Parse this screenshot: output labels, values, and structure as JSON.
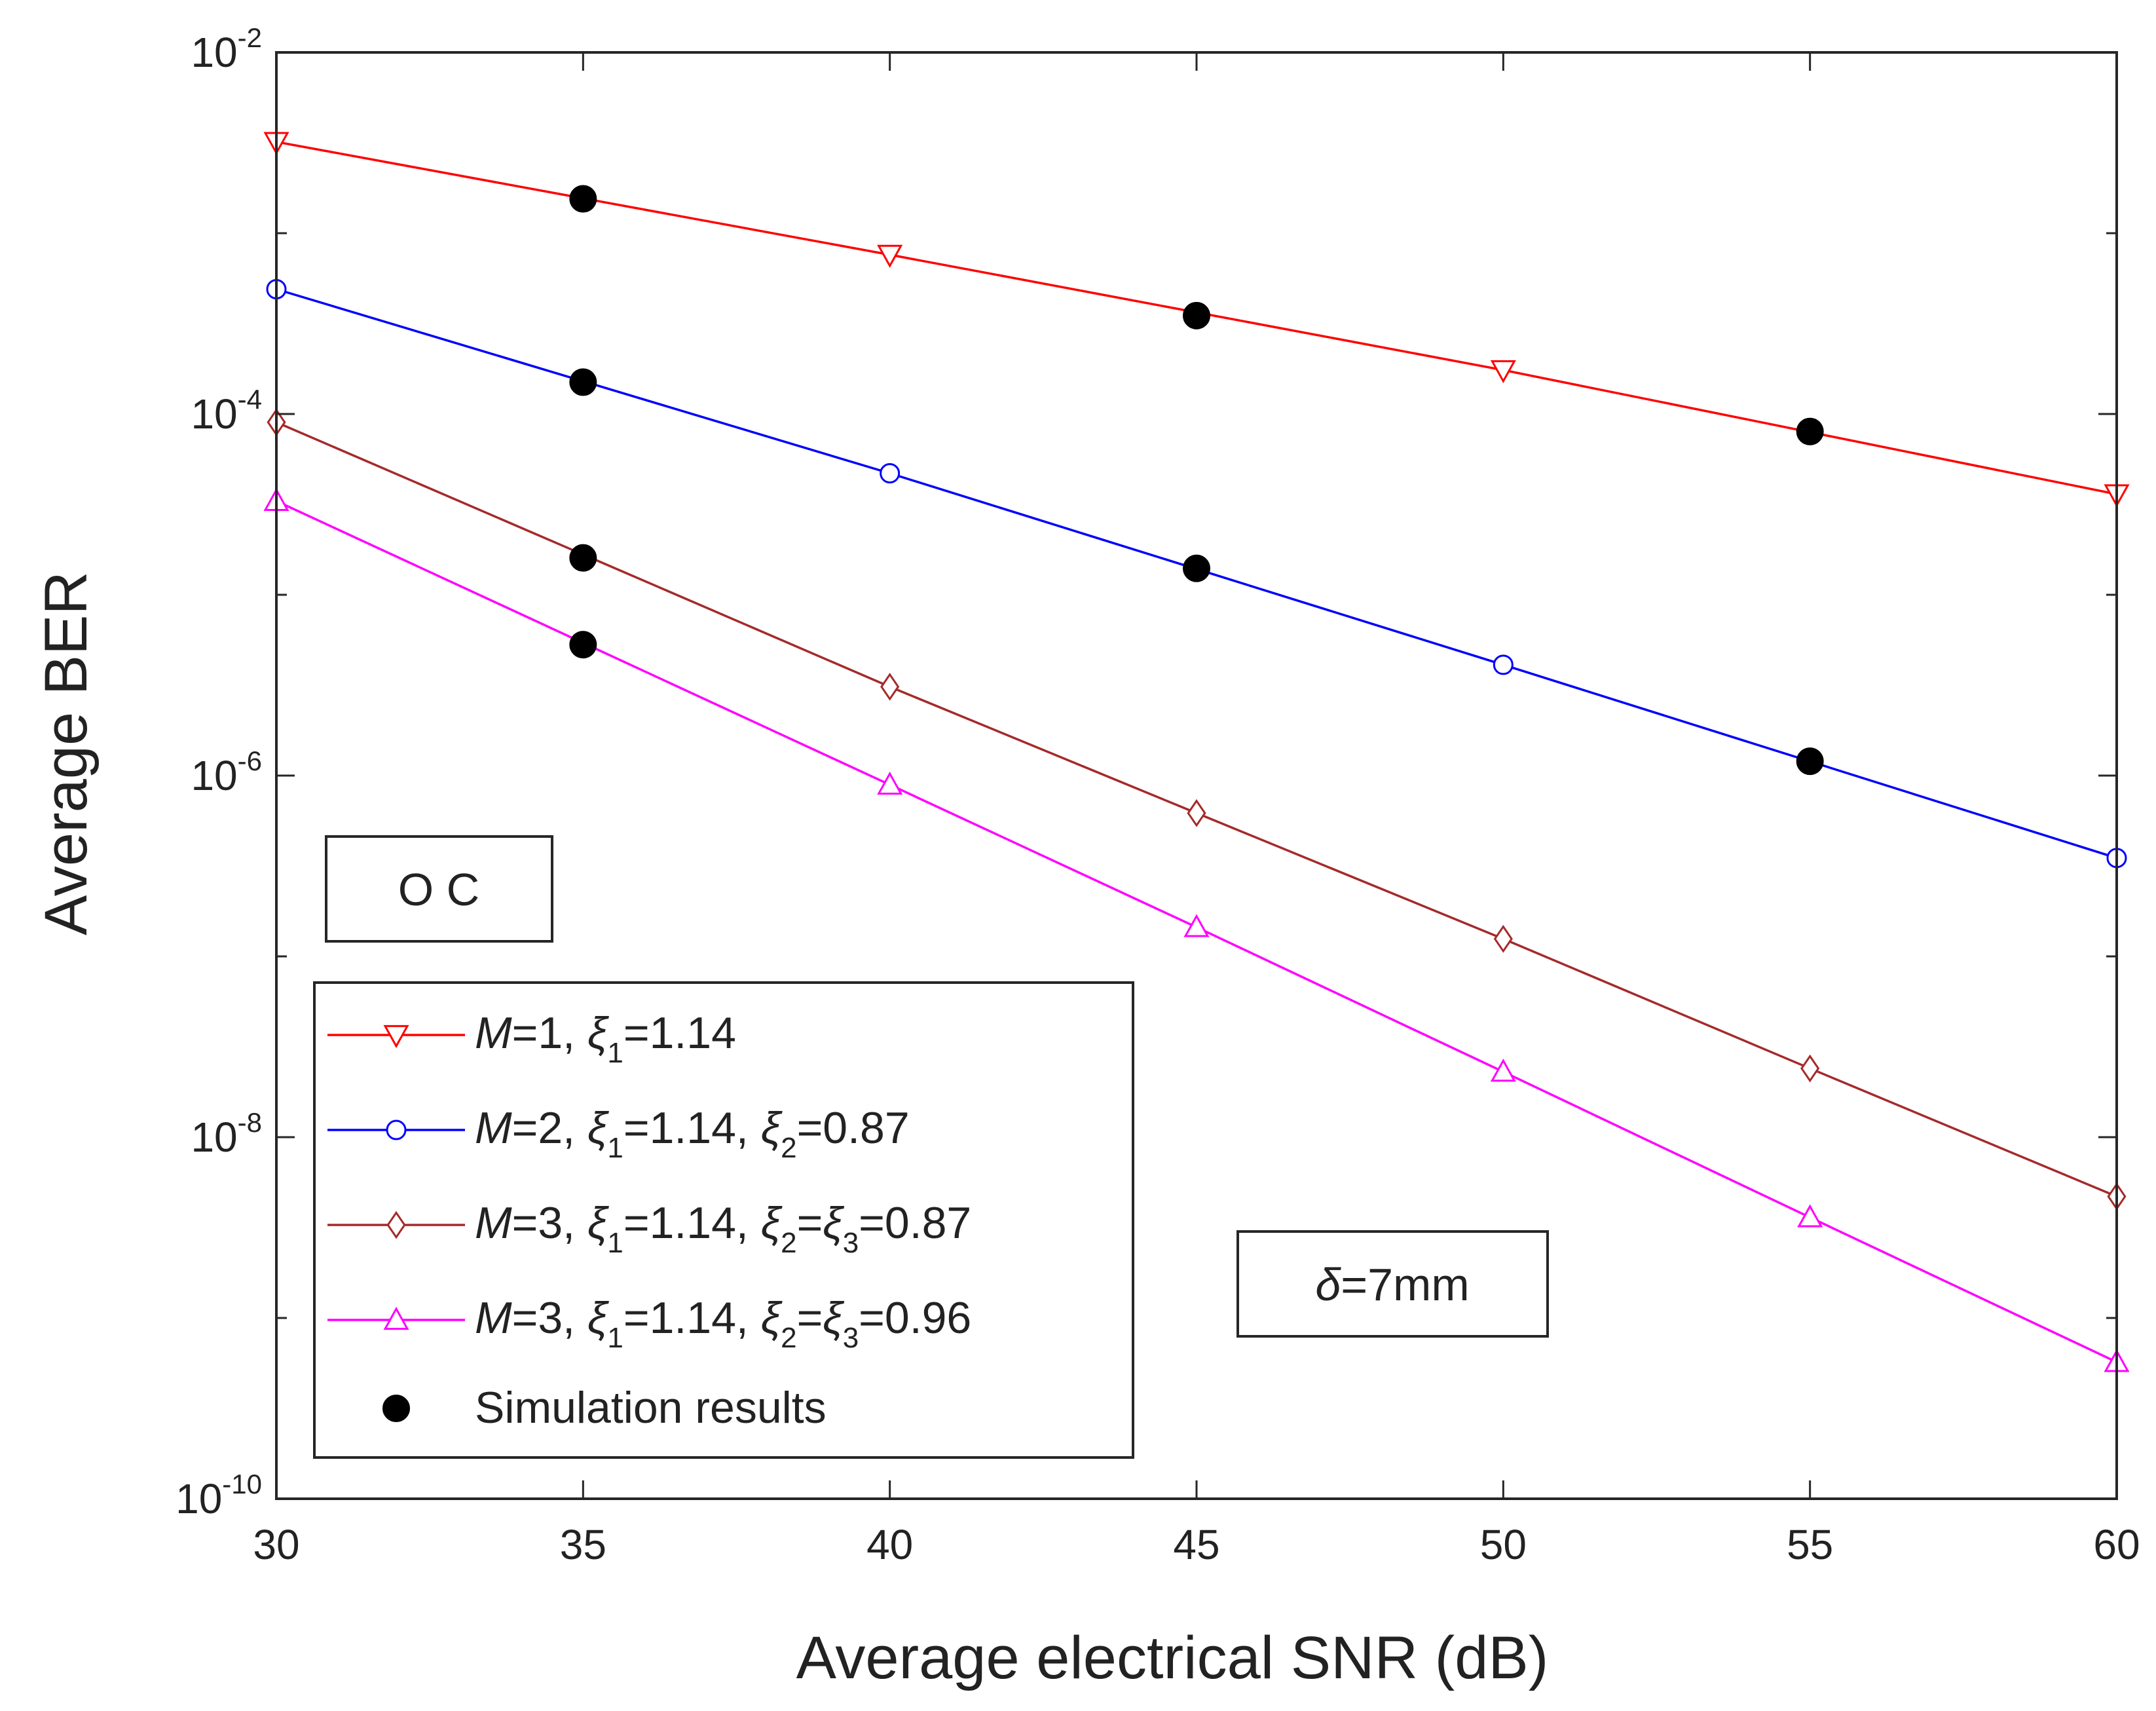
{
  "chart_data": {
    "type": "line",
    "xlabel": "Average electrical SNR (dB)",
    "ylabel": "Average BER",
    "xlim": [
      30,
      60
    ],
    "ylim": [
      1e-10,
      0.01
    ],
    "yscale": "log",
    "grid": false,
    "x_ticks": [
      "30",
      "35",
      "40",
      "45",
      "50",
      "55",
      "60"
    ],
    "y_ticks": [
      {
        "base": "10",
        "exp": "-2",
        "value": 0.01
      },
      {
        "base": "10",
        "exp": "-4",
        "value": 0.0001
      },
      {
        "base": "10",
        "exp": "-6",
        "value": 1e-06
      },
      {
        "base": "10",
        "exp": "-8",
        "value": 1e-08
      },
      {
        "base": "10",
        "exp": "-10",
        "value": 1e-10
      }
    ],
    "legend_position": "bottom-left",
    "series": [
      {
        "name": "M=1, ξ1=1.14",
        "legend_parts": {
          "v": "M",
          "a": "=1, ",
          "g1": "ξ",
          "s1": "1",
          "b": "=1.14"
        },
        "color": "#ff0000",
        "marker": "triangle-down",
        "x": [
          30,
          40,
          50,
          60
        ],
        "y": [
          0.0032,
          0.00076,
          0.000175,
          3.6e-05
        ]
      },
      {
        "name": "M=2, ξ1=1.14, ξ2=0.87",
        "legend_parts": {
          "v": "M",
          "a": "=2, ",
          "g1": "ξ",
          "s1": "1",
          "b": "=1.14, ",
          "g2": "ξ",
          "s2": "2",
          "c": "=0.87"
        },
        "color": "#0000ff",
        "marker": "circle",
        "x": [
          30,
          40,
          50,
          60
        ],
        "y": [
          0.00049,
          4.7e-05,
          4.1e-06,
          3.5e-07
        ]
      },
      {
        "name": "M=3, ξ1=1.14, ξ2=ξ3=0.87",
        "legend_parts": {
          "v": "M",
          "a": "=3, ",
          "g1": "ξ",
          "s1": "1",
          "b": "=1.14, ",
          "g2": "ξ",
          "s2": "2",
          "c": "=",
          "g3": "ξ",
          "s3": "3",
          "d": "=0.87"
        },
        "color": "#a52a2a",
        "marker": "diamond",
        "x": [
          30,
          40,
          45,
          50,
          55,
          60
        ],
        "y": [
          9e-05,
          3.1e-06,
          6.2e-07,
          1.25e-07,
          2.4e-08,
          4.7e-09
        ]
      },
      {
        "name": "M=3, ξ1=1.14, ξ2=ξ3=0.96",
        "legend_parts": {
          "v": "M",
          "a": "=3, ",
          "g1": "ξ",
          "s1": "1",
          "b": "=1.14, ",
          "g2": "ξ",
          "s2": "2",
          "c": "=",
          "g3": "ξ",
          "s3": "3",
          "d": "=0.96"
        },
        "color": "#ff00ff",
        "marker": "triangle-up",
        "x": [
          30,
          40,
          45,
          50,
          55,
          60
        ],
        "y": [
          3.3e-05,
          8.9e-07,
          1.45e-07,
          2.3e-08,
          3.6e-09,
          5.7e-10
        ]
      }
    ],
    "simulation": {
      "name": "Simulation results",
      "color": "#000000",
      "marker": "filled-circle",
      "points": [
        {
          "x": 35,
          "y": 0.00155
        },
        {
          "x": 45,
          "y": 0.00035
        },
        {
          "x": 55,
          "y": 8e-05
        },
        {
          "x": 35,
          "y": 0.00015
        },
        {
          "x": 45,
          "y": 1.4e-05
        },
        {
          "x": 55,
          "y": 1.2e-06
        },
        {
          "x": 35,
          "y": 1.6e-05
        },
        {
          "x": 35,
          "y": 5.3e-06
        }
      ]
    },
    "annotations": [
      {
        "id": "oc",
        "text": "O C"
      },
      {
        "id": "delta",
        "symbol": "δ",
        "text": "=7mm"
      }
    ]
  }
}
